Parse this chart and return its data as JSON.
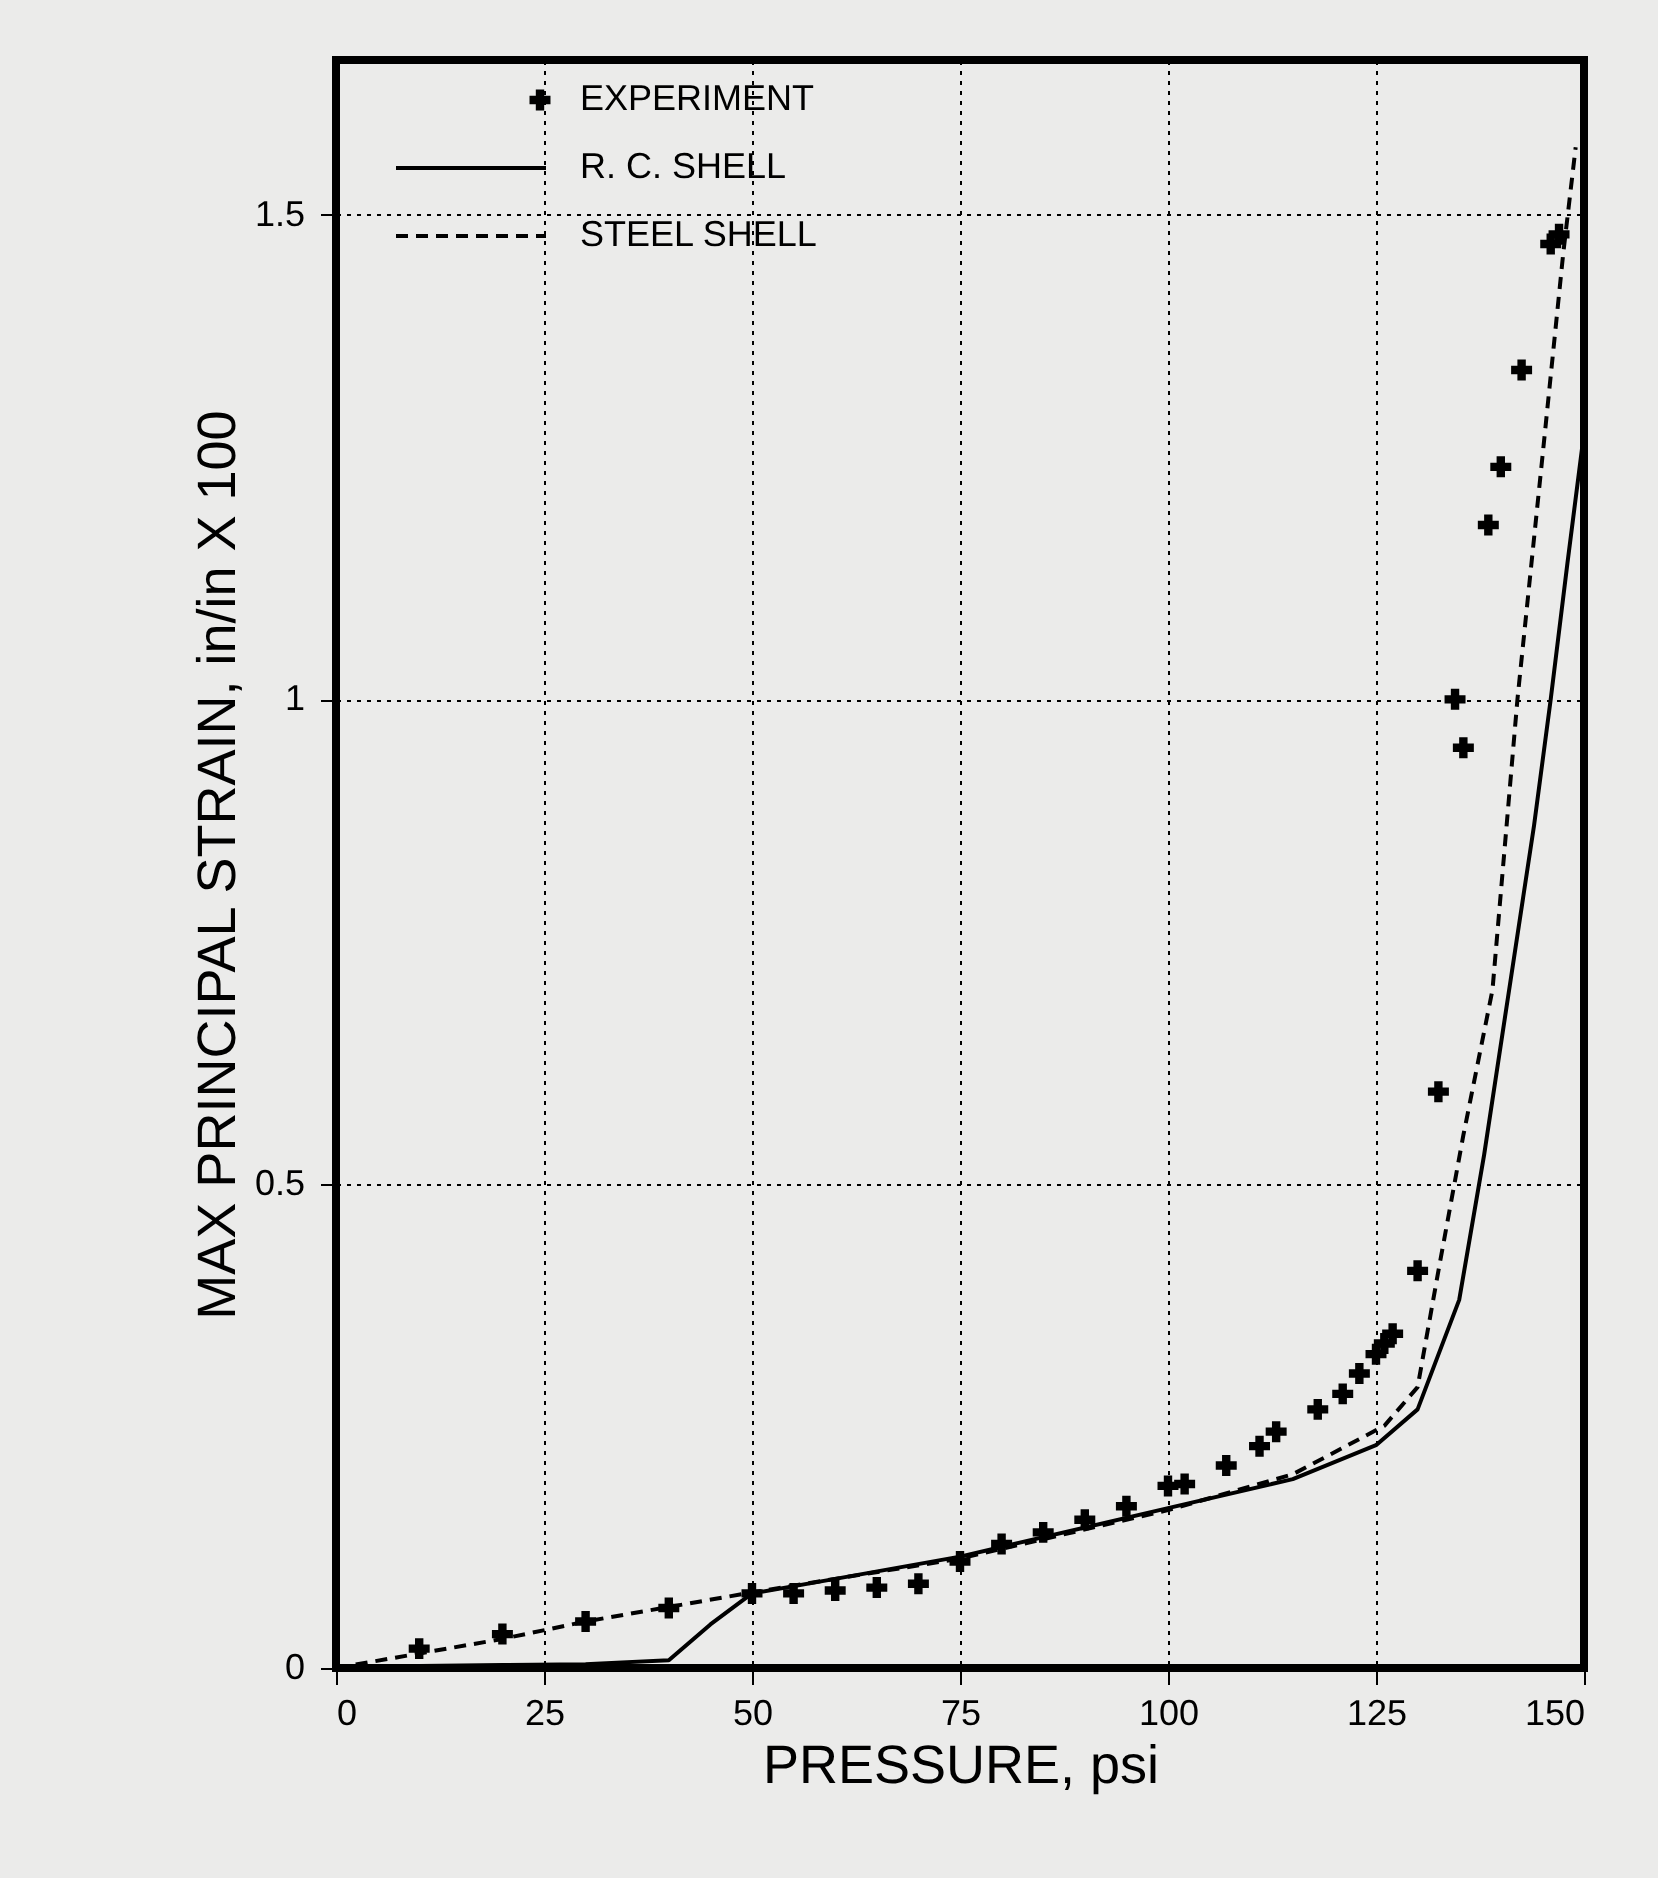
{
  "chart_data": {
    "type": "line",
    "xlabel": "PRESSURE, psi",
    "ylabel": "MAX PRINCIPAL STRAIN, in/in X 100",
    "xlim": [
      0,
      150
    ],
    "xticks": [
      0,
      25,
      50,
      75,
      100,
      125,
      150
    ],
    "ylim": [
      0,
      1.66
    ],
    "yticks": [
      0,
      0.5,
      1,
      1.5
    ],
    "grid": true,
    "legend": "top left",
    "series": [
      {
        "name": "EXPERIMENT",
        "type": "scatter",
        "marker": "cross",
        "color": "#000000",
        "x": [
          10,
          20,
          30,
          40,
          50,
          55,
          60,
          65,
          70,
          75,
          80,
          85,
          90,
          95,
          100,
          102,
          107,
          111,
          113,
          118,
          121,
          123,
          125,
          126,
          127,
          130,
          132.5,
          134.5,
          135.5,
          138.5,
          140,
          142.5,
          146,
          147
        ],
        "values": [
          0.02,
          0.035,
          0.048,
          0.062,
          0.077,
          0.077,
          0.08,
          0.083,
          0.087,
          0.11,
          0.128,
          0.14,
          0.153,
          0.167,
          0.188,
          0.19,
          0.209,
          0.229,
          0.244,
          0.267,
          0.283,
          0.304,
          0.324,
          0.335,
          0.345,
          0.41,
          0.595,
          1.0,
          0.95,
          1.18,
          1.24,
          1.34,
          1.47,
          1.48
        ]
      },
      {
        "name": "R. C. SHELL",
        "line_style": "solid",
        "color": "#000000",
        "x": [
          0,
          10,
          20,
          30,
          40,
          45,
          50,
          60,
          75,
          100,
          115,
          125,
          130,
          135,
          138,
          141,
          144,
          146,
          148,
          150
        ],
        "values": [
          0,
          0.002,
          0.003,
          0.004,
          0.008,
          0.045,
          0.077,
          0.092,
          0.115,
          0.165,
          0.195,
          0.23,
          0.267,
          0.38,
          0.53,
          0.7,
          0.87,
          1.0,
          1.14,
          1.275
        ]
      },
      {
        "name": "STEEL SHELL",
        "line_style": "dashed",
        "color": "#000000",
        "x": [
          0,
          10,
          20,
          30,
          40,
          50,
          75,
          100,
          115,
          126,
          130,
          132.5,
          135.5,
          139,
          142,
          145,
          147.5,
          149
        ],
        "values": [
          0,
          0.015,
          0.03,
          0.048,
          0.063,
          0.078,
          0.113,
          0.163,
          0.2,
          0.25,
          0.29,
          0.41,
          0.55,
          0.7,
          1.0,
          1.25,
          1.46,
          1.57
        ]
      }
    ]
  }
}
